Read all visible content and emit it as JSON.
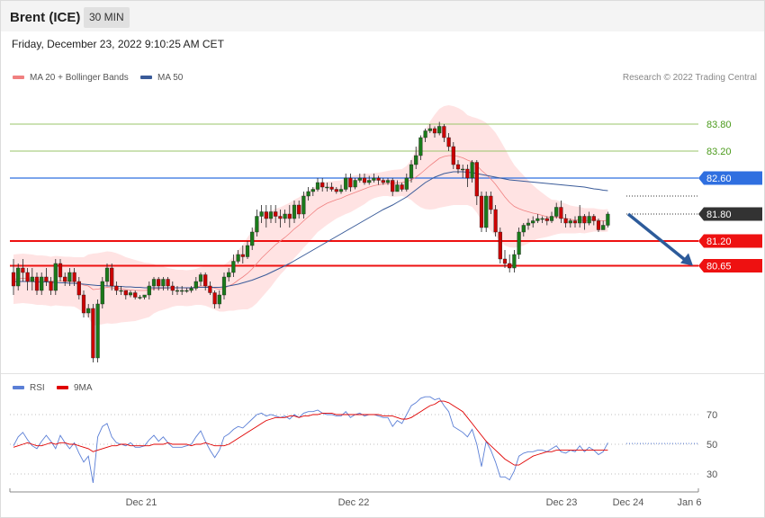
{
  "header": {
    "title": "Brent (ICE)",
    "timeframe": "30 MIN"
  },
  "timestamp": "Friday, December 23, 2022 9:10:25 AM CET",
  "credit": "Research © 2022 Trading Central",
  "legend": {
    "price": [
      {
        "label": "MA 20 + Bollinger Bands",
        "color": "#f08080"
      },
      {
        "label": "MA 50",
        "color": "#3a5b99"
      }
    ],
    "rsi": [
      {
        "label": "RSI",
        "color": "#5b7fd6"
      },
      {
        "label": "9MA",
        "color": "#e00000"
      }
    ]
  },
  "chart_data": {
    "type": "candlestick",
    "price_levels": [
      {
        "value": 83.8,
        "label": "83.80",
        "style": "line",
        "color": "#9ac46a",
        "text_color": "#4a9a1a"
      },
      {
        "value": 83.2,
        "label": "83.20",
        "style": "line",
        "color": "#9ac46a",
        "text_color": "#4a9a1a"
      },
      {
        "value": 82.6,
        "label": "82.60",
        "style": "badge",
        "color": "#2f6fe0"
      },
      {
        "value": 81.8,
        "label": "81.80",
        "style": "badge-dotted",
        "color": "#333333"
      },
      {
        "value": 81.2,
        "label": "81.20",
        "style": "badge-thick",
        "color": "#ee1111"
      },
      {
        "value": 80.65,
        "label": "80.65",
        "style": "badge-thick",
        "color": "#ee1111"
      }
    ],
    "projection": {
      "from": 81.8,
      "to": 80.65,
      "color": "#2d5b9a"
    },
    "x_ticks": [
      "Dec 21",
      "Dec 22",
      "Dec 23",
      "Dec 24",
      "Jan 6"
    ],
    "candles": [
      [
        80.5,
        80.2,
        80.8,
        80.0
      ],
      [
        80.2,
        80.6,
        80.7,
        80.1
      ],
      [
        80.6,
        80.5,
        80.8,
        80.3
      ],
      [
        80.5,
        80.3,
        80.6,
        80.1
      ],
      [
        80.3,
        80.4,
        80.6,
        80.1
      ],
      [
        80.4,
        80.1,
        80.5,
        80.0
      ],
      [
        80.1,
        80.4,
        80.5,
        80.0
      ],
      [
        80.4,
        80.3,
        80.6,
        80.2
      ],
      [
        80.3,
        80.1,
        80.4,
        80.0
      ],
      [
        80.1,
        80.7,
        80.8,
        80.0
      ],
      [
        80.7,
        80.4,
        80.8,
        80.3
      ],
      [
        80.4,
        80.3,
        80.5,
        80.2
      ],
      [
        80.3,
        80.5,
        80.6,
        80.2
      ],
      [
        80.5,
        80.3,
        80.6,
        80.2
      ],
      [
        80.3,
        80.0,
        80.4,
        79.9
      ],
      [
        80.0,
        79.6,
        80.1,
        79.5
      ],
      [
        79.6,
        79.7,
        79.8,
        79.5
      ],
      [
        79.7,
        78.6,
        79.8,
        78.5
      ],
      [
        78.6,
        79.8,
        79.9,
        78.5
      ],
      [
        79.8,
        80.3,
        80.4,
        79.7
      ],
      [
        80.3,
        80.6,
        80.7,
        80.2
      ],
      [
        80.6,
        80.2,
        80.7,
        80.1
      ],
      [
        80.2,
        80.1,
        80.3,
        80.0
      ],
      [
        80.1,
        80.1,
        80.2,
        80.0
      ],
      [
        80.1,
        80.0,
        80.1,
        79.9
      ],
      [
        80.0,
        80.05,
        80.1,
        79.95
      ],
      [
        80.05,
        79.95,
        80.1,
        79.9
      ],
      [
        79.95,
        79.95,
        80.0,
        79.9
      ],
      [
        79.95,
        80.0,
        80.0,
        79.9
      ],
      [
        80.0,
        80.2,
        80.3,
        79.9
      ],
      [
        80.2,
        80.35,
        80.4,
        80.1
      ],
      [
        80.35,
        80.2,
        80.4,
        80.1
      ],
      [
        80.2,
        80.35,
        80.4,
        80.1
      ],
      [
        80.35,
        80.2,
        80.4,
        80.1
      ],
      [
        80.2,
        80.1,
        80.3,
        80.0
      ],
      [
        80.1,
        80.1,
        80.2,
        80.0
      ],
      [
        80.1,
        80.1,
        80.2,
        80.0
      ],
      [
        80.1,
        80.1,
        80.15,
        80.05
      ],
      [
        80.1,
        80.15,
        80.2,
        80.05
      ],
      [
        80.15,
        80.3,
        80.4,
        80.1
      ],
      [
        80.3,
        80.45,
        80.5,
        80.2
      ],
      [
        80.45,
        80.2,
        80.5,
        80.1
      ],
      [
        80.2,
        80.05,
        80.3,
        80.0
      ],
      [
        80.05,
        79.8,
        80.1,
        79.7
      ],
      [
        79.8,
        80.0,
        80.1,
        79.7
      ],
      [
        80.0,
        80.4,
        80.5,
        79.9
      ],
      [
        80.4,
        80.5,
        80.6,
        80.3
      ],
      [
        80.5,
        80.75,
        80.9,
        80.4
      ],
      [
        80.75,
        80.9,
        81.0,
        80.7
      ],
      [
        80.9,
        80.85,
        81.1,
        80.7
      ],
      [
        80.85,
        81.1,
        81.2,
        80.8
      ],
      [
        81.1,
        81.4,
        81.5,
        81.0
      ],
      [
        81.4,
        81.75,
        81.9,
        81.3
      ],
      [
        81.75,
        81.85,
        82.0,
        81.6
      ],
      [
        81.85,
        81.7,
        82.0,
        81.5
      ],
      [
        81.7,
        81.85,
        82.0,
        81.6
      ],
      [
        81.85,
        81.75,
        82.0,
        81.6
      ],
      [
        81.75,
        81.7,
        81.9,
        81.5
      ],
      [
        81.7,
        81.8,
        81.9,
        81.6
      ],
      [
        81.8,
        81.7,
        82.0,
        81.5
      ],
      [
        81.7,
        82.0,
        82.1,
        81.6
      ],
      [
        82.0,
        81.8,
        82.1,
        81.7
      ],
      [
        81.8,
        82.2,
        82.3,
        81.7
      ],
      [
        82.2,
        82.3,
        82.4,
        82.1
      ],
      [
        82.3,
        82.35,
        82.4,
        82.2
      ],
      [
        82.35,
        82.5,
        82.6,
        82.3
      ],
      [
        82.5,
        82.4,
        82.6,
        82.3
      ],
      [
        82.4,
        82.4,
        82.5,
        82.3
      ],
      [
        82.4,
        82.35,
        82.5,
        82.3
      ],
      [
        82.35,
        82.3,
        82.4,
        82.25
      ],
      [
        82.3,
        82.35,
        82.45,
        82.25
      ],
      [
        82.35,
        82.6,
        82.7,
        82.3
      ],
      [
        82.6,
        82.4,
        82.7,
        82.3
      ],
      [
        82.4,
        82.55,
        82.6,
        82.35
      ],
      [
        82.55,
        82.6,
        82.7,
        82.5
      ],
      [
        82.6,
        82.5,
        82.7,
        82.45
      ],
      [
        82.5,
        82.55,
        82.65,
        82.45
      ],
      [
        82.55,
        82.6,
        82.7,
        82.5
      ],
      [
        82.6,
        82.55,
        82.65,
        82.45
      ],
      [
        82.55,
        82.5,
        82.6,
        82.45
      ],
      [
        82.5,
        82.55,
        82.6,
        82.45
      ],
      [
        82.55,
        82.3,
        82.6,
        82.2
      ],
      [
        82.3,
        82.45,
        82.55,
        82.3
      ],
      [
        82.45,
        82.35,
        82.5,
        82.3
      ],
      [
        82.35,
        82.6,
        82.7,
        82.3
      ],
      [
        82.6,
        82.9,
        83.0,
        82.5
      ],
      [
        82.9,
        83.1,
        83.3,
        82.8
      ],
      [
        83.1,
        83.5,
        83.55,
        83.0
      ],
      [
        83.5,
        83.65,
        83.7,
        83.4
      ],
      [
        83.65,
        83.7,
        83.8,
        83.6
      ],
      [
        83.7,
        83.6,
        83.75,
        83.5
      ],
      [
        83.6,
        83.75,
        83.85,
        83.55
      ],
      [
        83.75,
        83.5,
        83.8,
        83.4
      ],
      [
        83.5,
        83.3,
        83.6,
        83.2
      ],
      [
        83.3,
        82.9,
        83.4,
        82.8
      ],
      [
        82.9,
        82.8,
        83.0,
        82.7
      ],
      [
        82.8,
        82.8,
        82.9,
        82.6
      ],
      [
        82.8,
        82.6,
        82.9,
        82.4
      ],
      [
        82.6,
        82.95,
        83.0,
        82.5
      ],
      [
        82.95,
        82.2,
        83.0,
        82.0
      ],
      [
        82.2,
        81.5,
        82.3,
        81.4
      ],
      [
        81.5,
        82.2,
        82.3,
        81.4
      ],
      [
        82.2,
        81.9,
        82.3,
        81.8
      ],
      [
        81.9,
        81.4,
        82.0,
        81.3
      ],
      [
        81.4,
        80.8,
        81.5,
        80.7
      ],
      [
        80.8,
        80.7,
        81.0,
        80.6
      ],
      [
        80.7,
        80.6,
        80.9,
        80.5
      ],
      [
        80.6,
        80.9,
        81.0,
        80.5
      ],
      [
        80.9,
        81.4,
        81.5,
        80.8
      ],
      [
        81.4,
        81.55,
        81.6,
        81.3
      ],
      [
        81.55,
        81.6,
        81.7,
        81.45
      ],
      [
        81.6,
        81.65,
        81.75,
        81.5
      ],
      [
        81.65,
        81.7,
        81.8,
        81.6
      ],
      [
        81.7,
        81.7,
        81.75,
        81.6
      ],
      [
        81.7,
        81.65,
        81.75,
        81.55
      ],
      [
        81.65,
        81.75,
        81.85,
        81.6
      ],
      [
        81.75,
        81.95,
        82.05,
        81.7
      ],
      [
        81.95,
        81.7,
        82.1,
        81.6
      ],
      [
        81.7,
        81.6,
        81.8,
        81.5
      ],
      [
        81.6,
        81.65,
        81.7,
        81.5
      ],
      [
        81.65,
        81.6,
        81.75,
        81.5
      ],
      [
        81.6,
        81.75,
        82.0,
        81.5
      ],
      [
        81.75,
        81.6,
        81.8,
        81.45
      ],
      [
        81.6,
        81.75,
        81.85,
        81.55
      ],
      [
        81.75,
        81.65,
        81.8,
        81.55
      ],
      [
        81.65,
        81.45,
        81.7,
        81.4
      ],
      [
        81.45,
        81.55,
        81.65,
        81.45
      ],
      [
        81.55,
        81.8,
        81.85,
        81.5
      ]
    ],
    "ma20": [
      80.35,
      80.36,
      80.37,
      80.36,
      80.35,
      80.33,
      80.33,
      80.32,
      80.3,
      80.32,
      80.31,
      80.3,
      80.3,
      80.29,
      80.26,
      80.22,
      80.2,
      80.12,
      80.13,
      80.15,
      80.17,
      80.16,
      80.15,
      80.14,
      80.12,
      80.11,
      80.1,
      80.1,
      80.1,
      80.11,
      80.14,
      80.14,
      80.15,
      80.15,
      80.16,
      80.16,
      80.16,
      80.15,
      80.16,
      80.18,
      80.2,
      80.2,
      80.18,
      80.15,
      80.13,
      80.15,
      80.2,
      80.25,
      80.33,
      80.4,
      80.48,
      80.58,
      80.7,
      80.82,
      80.92,
      81.02,
      81.12,
      81.2,
      81.28,
      81.37,
      81.47,
      81.55,
      81.65,
      81.74,
      81.83,
      81.92,
      81.98,
      82.04,
      82.08,
      82.12,
      82.15,
      82.2,
      82.24,
      82.28,
      82.32,
      82.36,
      82.4,
      82.43,
      82.45,
      82.47,
      82.48,
      82.48,
      82.49,
      82.5,
      82.52,
      82.56,
      82.62,
      82.7,
      82.79,
      82.88,
      82.96,
      83.04,
      83.08,
      83.1,
      83.1,
      83.08,
      83.05,
      83.0,
      82.96,
      82.88,
      82.77,
      82.68,
      82.58,
      82.46,
      82.32,
      82.18,
      82.06,
      81.97,
      81.92,
      81.88,
      81.85,
      81.82,
      81.8,
      81.77,
      81.74,
      81.72,
      81.73,
      81.72,
      81.7,
      81.68,
      81.67,
      81.67,
      81.65,
      81.66,
      81.67,
      81.66,
      81.65,
      81.66
    ],
    "bb_width": [
      0.55,
      0.55,
      0.55,
      0.55,
      0.55,
      0.55,
      0.55,
      0.55,
      0.55,
      0.55,
      0.55,
      0.55,
      0.55,
      0.55,
      0.58,
      0.62,
      0.7,
      0.8,
      0.8,
      0.8,
      0.8,
      0.8,
      0.78,
      0.75,
      0.72,
      0.7,
      0.68,
      0.65,
      0.62,
      0.6,
      0.55,
      0.5,
      0.48,
      0.45,
      0.42,
      0.4,
      0.4,
      0.4,
      0.4,
      0.4,
      0.42,
      0.44,
      0.46,
      0.48,
      0.5,
      0.52,
      0.55,
      0.6,
      0.66,
      0.72,
      0.8,
      0.85,
      0.88,
      0.88,
      0.86,
      0.84,
      0.8,
      0.75,
      0.72,
      0.68,
      0.65,
      0.62,
      0.6,
      0.58,
      0.55,
      0.52,
      0.5,
      0.48,
      0.45,
      0.42,
      0.4,
      0.4,
      0.4,
      0.38,
      0.36,
      0.34,
      0.3,
      0.28,
      0.27,
      0.27,
      0.28,
      0.3,
      0.3,
      0.3,
      0.35,
      0.45,
      0.6,
      0.75,
      0.88,
      0.98,
      1.05,
      1.1,
      1.12,
      1.12,
      1.1,
      1.08,
      1.05,
      1.0,
      1.0,
      1.05,
      1.12,
      1.15,
      1.15,
      1.15,
      1.12,
      1.08,
      1.0,
      0.92,
      0.85,
      0.78,
      0.7,
      0.62,
      0.55,
      0.5,
      0.45,
      0.4,
      0.38,
      0.35,
      0.33,
      0.31,
      0.3,
      0.29,
      0.28,
      0.27,
      0.26,
      0.25,
      0.25,
      0.25
    ],
    "ma50": [
      80.3,
      80.3,
      80.3,
      80.3,
      80.3,
      80.29,
      80.29,
      80.29,
      80.28,
      80.28,
      80.27,
      80.27,
      80.26,
      80.26,
      80.25,
      80.24,
      80.23,
      80.22,
      80.21,
      80.21,
      80.2,
      80.2,
      80.19,
      80.19,
      80.18,
      80.18,
      80.17,
      80.17,
      80.16,
      80.16,
      80.16,
      80.16,
      80.16,
      80.16,
      80.16,
      80.16,
      80.16,
      80.16,
      80.16,
      80.17,
      80.17,
      80.17,
      80.17,
      80.17,
      80.17,
      80.18,
      80.2,
      80.22,
      80.24,
      80.27,
      80.3,
      80.33,
      80.37,
      80.41,
      80.45,
      80.5,
      80.55,
      80.6,
      80.65,
      80.7,
      80.76,
      80.82,
      80.88,
      80.94,
      81.0,
      81.06,
      81.12,
      81.18,
      81.24,
      81.3,
      81.36,
      81.42,
      81.48,
      81.54,
      81.6,
      81.66,
      81.72,
      81.78,
      81.84,
      81.9,
      81.95,
      82.0,
      82.06,
      82.12,
      82.18,
      82.26,
      82.34,
      82.42,
      82.5,
      82.56,
      82.62,
      82.66,
      82.7,
      82.72,
      82.74,
      82.74,
      82.74,
      82.73,
      82.72,
      82.7,
      82.68,
      82.66,
      82.64,
      82.62,
      82.6,
      82.58,
      82.56,
      82.55,
      82.54,
      82.53,
      82.52,
      82.51,
      82.5,
      82.49,
      82.48,
      82.47,
      82.46,
      82.45,
      82.44,
      82.43,
      82.42,
      82.41,
      82.4,
      82.38,
      82.36,
      82.35,
      82.33,
      82.32
    ],
    "rsi": {
      "levels": [
        70,
        50,
        30
      ],
      "rsi": [
        49,
        55,
        58,
        53,
        49,
        47,
        52,
        56,
        52,
        47,
        56,
        51,
        47,
        51,
        44,
        38,
        42,
        24,
        55,
        62,
        64,
        55,
        51,
        50,
        49,
        51,
        48,
        48,
        49,
        53,
        56,
        52,
        55,
        51,
        48,
        48,
        48,
        49,
        50,
        55,
        59,
        52,
        46,
        41,
        46,
        55,
        57,
        60,
        62,
        61,
        64,
        67,
        70,
        71,
        69,
        70,
        69,
        68,
        69,
        67,
        70,
        68,
        71,
        72,
        72,
        73,
        71,
        70,
        70,
        69,
        69,
        72,
        68,
        70,
        71,
        69,
        70,
        70,
        69,
        68,
        68,
        62,
        66,
        64,
        70,
        76,
        78,
        81,
        82,
        82,
        80,
        81,
        76,
        72,
        62,
        60,
        58,
        55,
        60,
        50,
        35,
        52,
        46,
        38,
        28,
        28,
        26,
        32,
        42,
        44,
        45,
        45,
        46,
        46,
        45,
        47,
        49,
        45,
        44,
        46,
        45,
        49,
        45,
        48,
        46,
        43,
        45,
        51
      ],
      "ma": [
        48,
        49,
        50,
        51,
        50,
        49,
        49,
        50,
        51,
        50,
        51,
        51,
        50,
        50,
        49,
        48,
        47,
        45,
        46,
        47,
        48,
        49,
        49,
        50,
        50,
        49,
        49,
        49,
        49,
        49,
        50,
        50,
        50,
        51,
        50,
        50,
        50,
        50,
        49,
        50,
        50,
        51,
        50,
        49,
        49,
        49,
        50,
        52,
        54,
        56,
        58,
        60,
        62,
        64,
        66,
        67,
        68,
        68,
        68,
        69,
        69,
        68,
        69,
        69,
        70,
        70,
        71,
        71,
        71,
        70,
        70,
        70,
        70,
        70,
        70,
        70,
        70,
        70,
        70,
        69,
        69,
        69,
        68,
        67,
        67,
        68,
        70,
        72,
        74,
        76,
        77,
        79,
        79,
        78,
        76,
        74,
        72,
        68,
        64,
        60,
        56,
        52,
        49,
        46,
        43,
        40,
        38,
        36,
        36,
        38,
        40,
        42,
        43,
        44,
        45,
        45,
        46,
        46,
        46,
        46,
        46,
        46,
        46,
        46,
        46,
        46,
        46,
        46
      ]
    }
  }
}
